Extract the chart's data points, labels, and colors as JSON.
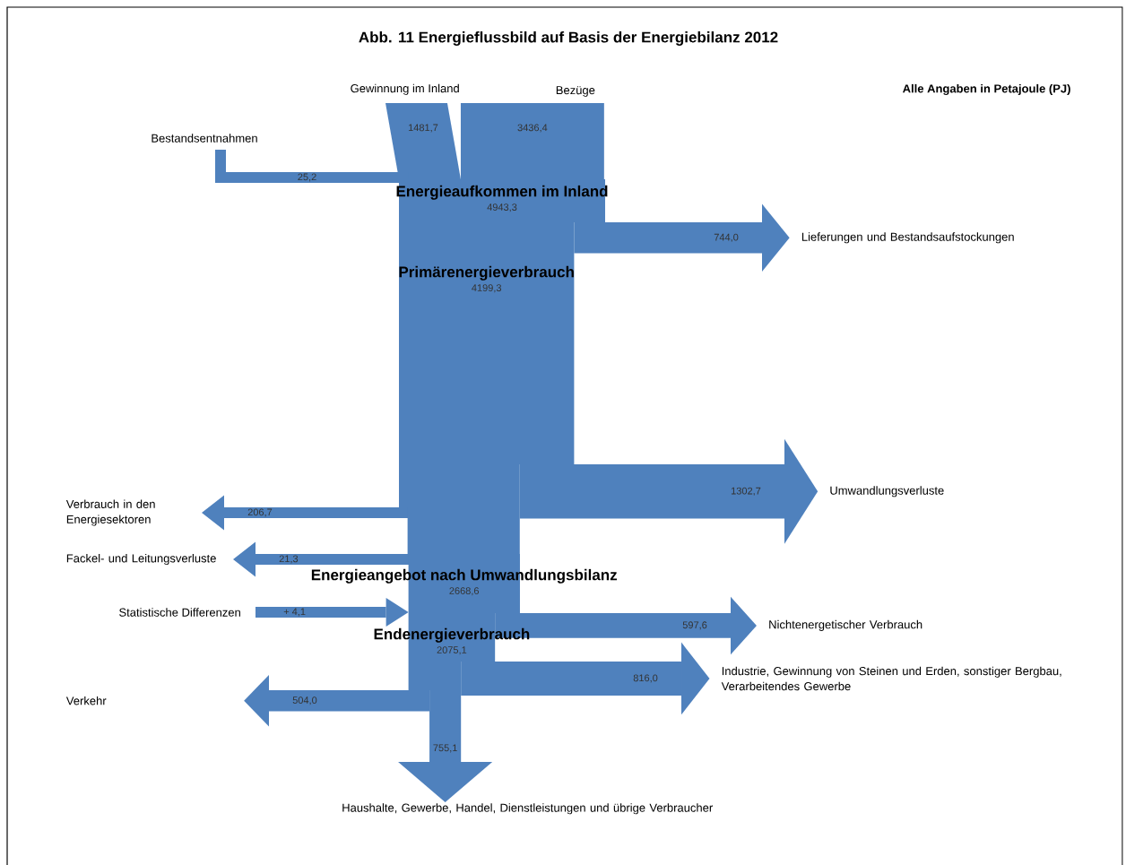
{
  "chart_data": {
    "type": "other",
    "title": "Abb. 11 Energieflussbild auf Basis der Energiebilanz 2012",
    "annotations": [
      "Alle Angaben in Petajoule (PJ)"
    ],
    "color": "#4f81bd",
    "categories": [
      "Gewinnung im Inland",
      "Bezüge",
      "Bestandsentnahmen",
      "Energieaufkommen im Inland",
      "Lieferungen und Bestandsaufstockungen",
      "Primärenergieverbrauch",
      "Umwandlungsverluste",
      "Verbrauch in den Energiesektoren",
      "Fackel- und Leitungsverluste",
      "Energieangebot nach Umwandlungsbilanz",
      "Statistische Differenzen",
      "Nichtenergetischer Verbrauch",
      "Endenergieverbrauch",
      "Industrie, Gewinnung von Steinen und Erden, sonstiger Bergbau, Verarbeitendes Gewerbe",
      "Verkehr",
      "Haushalte, Gewerbe, Handel, Dienstleistungen und übrige Verbraucher"
    ],
    "values": [
      1481.7,
      3436.4,
      25.2,
      4943.3,
      744.0,
      4199.3,
      1302.7,
      206.7,
      21.3,
      2668.6,
      4.1,
      597.6,
      2075.1,
      816.0,
      504.0,
      755.1
    ],
    "value_labels": [
      "1481,7",
      "3436,4",
      "25,2",
      "4943,3",
      "744,0",
      "4199,3",
      "1302,7",
      "206,7",
      "21,3",
      "2668,6",
      "+ 4,1",
      "597,6",
      "2075,1",
      "816,0",
      "504,0",
      "755,1"
    ]
  }
}
